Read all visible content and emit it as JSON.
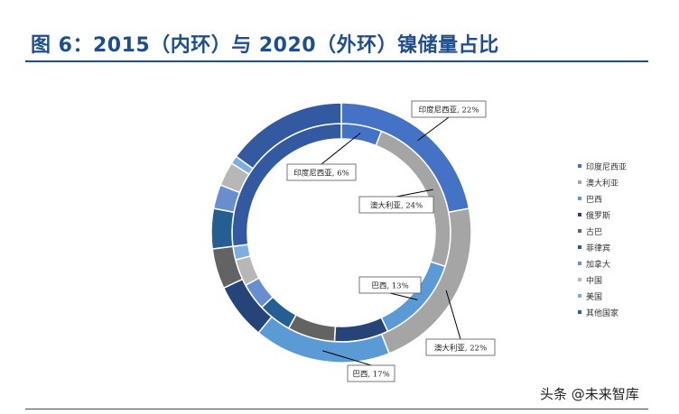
{
  "title": "图 6：2015（内环）与 2020（外环）镍储量占比",
  "watermark": "头条 @未来智库",
  "colors": {
    "title": "#1f4e8c",
    "印度尼西亚": "#4472c4",
    "澳大利亚": "#a5a5a5",
    "巴西": "#5b9bd5",
    "俄罗斯": "#264478",
    "古巴": "#636363",
    "菲律宾": "#255e91",
    "加拿大": "#698ed0",
    "中国": "#b7b7b7",
    "美国": "#7cafdd",
    "其他国家": "#335aa1"
  },
  "legend": [
    "印度尼西亚",
    "澳大利亚",
    "巴西",
    "俄罗斯",
    "古巴",
    "菲律宾",
    "加拿大",
    "中国",
    "美国",
    "其他国家"
  ],
  "chart_data": {
    "type": "pie",
    "subtype": "double-doughnut",
    "categories": [
      "印度尼西亚",
      "澳大利亚",
      "巴西",
      "俄罗斯",
      "古巴",
      "菲律宾",
      "加拿大",
      "中国",
      "美国",
      "其他国家"
    ],
    "series": [
      {
        "ring": "inner",
        "values": [
          6,
          24,
          13,
          8,
          7,
          5,
          4,
          4,
          2,
          27
        ]
      },
      {
        "ring": "outer",
        "values": [
          22,
          22,
          17,
          7,
          5,
          5,
          3,
          3,
          1,
          15
        ]
      }
    ],
    "data_labels": [
      {
        "text": "印度尼西亚, 22%",
        "ring": "outer",
        "index": 0
      },
      {
        "text": "印度尼西亚, 6%",
        "ring": "inner",
        "index": 0
      },
      {
        "text": "澳大利亚, 24%",
        "ring": "inner",
        "index": 1
      },
      {
        "text": "澳大利亚, 22%",
        "ring": "outer",
        "index": 1
      },
      {
        "text": "巴西, 13%",
        "ring": "inner",
        "index": 2
      },
      {
        "text": "巴西, 17%",
        "ring": "outer",
        "index": 2
      }
    ],
    "legend_position": "right"
  }
}
